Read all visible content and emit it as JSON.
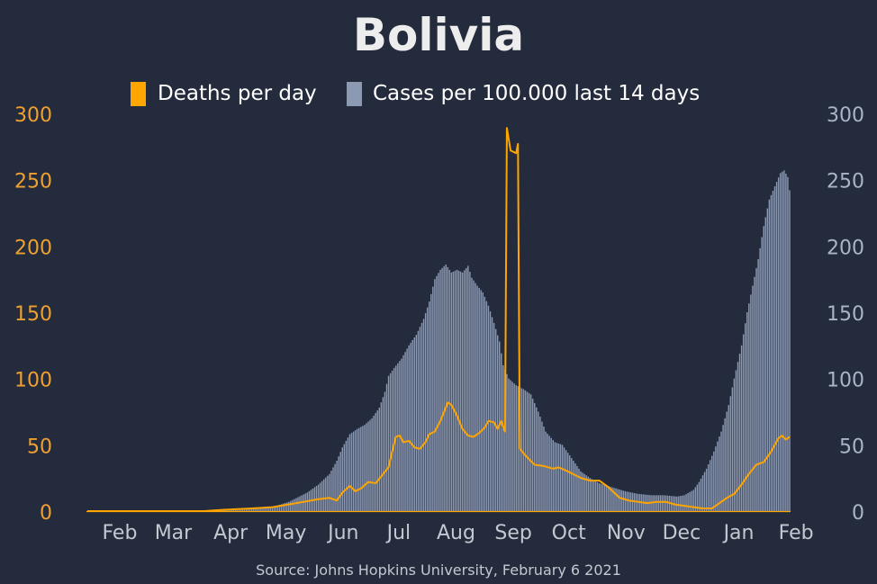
{
  "colors": {
    "background": "#232b3c",
    "deaths": "#ffa500",
    "cases": "#8c99b3",
    "left_axis": "#f0a030",
    "right_axis": "#a9b4c9",
    "month_labels": "#c4c8d0",
    "title": "#ededed",
    "legend_text": "#ffffff",
    "source": "#c4c8d0"
  },
  "chart_data": {
    "type": "bar",
    "title": "Bolivia",
    "source": "Source: Johns Hopkins University, February 6 2021",
    "legend": [
      {
        "label": "Deaths per day",
        "type": "line"
      },
      {
        "label": "Cases per 100.000 last 14 days",
        "type": "bar"
      }
    ],
    "x_ticks": [
      "Feb",
      "Mar",
      "Apr",
      "May",
      "Jun",
      "Jul",
      "Aug",
      "Sep",
      "Oct",
      "Nov",
      "Dec",
      "Jan",
      "Feb"
    ],
    "x_tick_dates": [
      "2020-02-01",
      "2020-03-01",
      "2020-04-01",
      "2020-05-01",
      "2020-06-01",
      "2020-07-01",
      "2020-08-01",
      "2020-09-01",
      "2020-10-01",
      "2020-11-01",
      "2020-12-01",
      "2021-01-01",
      "2021-02-01"
    ],
    "x_range": [
      "2020-01-22",
      "2021-02-05"
    ],
    "left_axis": {
      "label": "Deaths per day",
      "ticks": [
        0,
        50,
        100,
        150,
        200,
        250,
        300
      ],
      "ylim": [
        0,
        300
      ]
    },
    "right_axis": {
      "label": "Cases per 100.000 last 14 days",
      "ticks": [
        0,
        50,
        100,
        150,
        200,
        250,
        300
      ],
      "ylim": [
        0,
        300
      ]
    },
    "cases_per_100k_14d": [
      [
        "2020-01-22",
        0
      ],
      [
        "2020-03-20",
        0
      ],
      [
        "2020-04-01",
        0.3
      ],
      [
        "2020-04-15",
        1
      ],
      [
        "2020-05-01",
        3
      ],
      [
        "2020-05-10",
        7
      ],
      [
        "2020-05-20",
        14
      ],
      [
        "2020-05-26",
        20
      ],
      [
        "2020-06-01",
        28
      ],
      [
        "2020-06-05",
        38
      ],
      [
        "2020-06-08",
        48
      ],
      [
        "2020-06-12",
        58
      ],
      [
        "2020-06-16",
        62
      ],
      [
        "2020-06-20",
        65
      ],
      [
        "2020-06-24",
        70
      ],
      [
        "2020-06-28",
        78
      ],
      [
        "2020-07-01",
        90
      ],
      [
        "2020-07-03",
        102
      ],
      [
        "2020-07-06",
        108
      ],
      [
        "2020-07-10",
        115
      ],
      [
        "2020-07-14",
        125
      ],
      [
        "2020-07-18",
        133
      ],
      [
        "2020-07-22",
        145
      ],
      [
        "2020-07-25",
        158
      ],
      [
        "2020-07-28",
        175
      ],
      [
        "2020-07-31",
        182
      ],
      [
        "2020-08-03",
        186
      ],
      [
        "2020-08-06",
        180
      ],
      [
        "2020-08-09",
        182
      ],
      [
        "2020-08-12",
        180
      ],
      [
        "2020-08-15",
        185
      ],
      [
        "2020-08-17",
        176
      ],
      [
        "2020-08-20",
        170
      ],
      [
        "2020-08-23",
        165
      ],
      [
        "2020-08-26",
        155
      ],
      [
        "2020-08-29",
        142
      ],
      [
        "2020-09-01",
        128
      ],
      [
        "2020-09-03",
        110
      ],
      [
        "2020-09-06",
        100
      ],
      [
        "2020-09-10",
        95
      ],
      [
        "2020-09-14",
        92
      ],
      [
        "2020-09-18",
        88
      ],
      [
        "2020-09-22",
        75
      ],
      [
        "2020-09-26",
        60
      ],
      [
        "2020-10-01",
        52
      ],
      [
        "2020-10-05",
        50
      ],
      [
        "2020-10-10",
        40
      ],
      [
        "2020-10-15",
        30
      ],
      [
        "2020-10-20",
        25
      ],
      [
        "2020-10-25",
        21
      ],
      [
        "2020-11-01",
        18
      ],
      [
        "2020-11-08",
        15
      ],
      [
        "2020-11-15",
        13
      ],
      [
        "2020-11-22",
        12
      ],
      [
        "2020-11-29",
        12
      ],
      [
        "2020-12-06",
        11
      ],
      [
        "2020-12-10",
        12
      ],
      [
        "2020-12-15",
        16
      ],
      [
        "2020-12-18",
        22
      ],
      [
        "2020-12-22",
        32
      ],
      [
        "2020-12-26",
        45
      ],
      [
        "2020-12-30",
        60
      ],
      [
        "2021-01-03",
        80
      ],
      [
        "2021-01-06",
        100
      ],
      [
        "2021-01-10",
        125
      ],
      [
        "2021-01-13",
        150
      ],
      [
        "2021-01-16",
        170
      ],
      [
        "2021-01-19",
        190
      ],
      [
        "2021-01-22",
        215
      ],
      [
        "2021-01-25",
        235
      ],
      [
        "2021-01-28",
        245
      ],
      [
        "2021-01-31",
        255
      ],
      [
        "2021-02-02",
        257
      ],
      [
        "2021-02-04",
        252
      ],
      [
        "2021-02-05",
        242
      ]
    ],
    "deaths_per_day": [
      [
        "2020-01-22",
        0
      ],
      [
        "2020-03-25",
        0
      ],
      [
        "2020-04-05",
        1
      ],
      [
        "2020-04-20",
        2
      ],
      [
        "2020-05-01",
        3
      ],
      [
        "2020-05-10",
        5
      ],
      [
        "2020-05-18",
        7
      ],
      [
        "2020-05-26",
        9
      ],
      [
        "2020-06-01",
        10
      ],
      [
        "2020-06-05",
        8
      ],
      [
        "2020-06-08",
        14
      ],
      [
        "2020-06-12",
        19
      ],
      [
        "2020-06-15",
        15
      ],
      [
        "2020-06-18",
        17
      ],
      [
        "2020-06-22",
        22
      ],
      [
        "2020-06-26",
        21
      ],
      [
        "2020-06-30",
        28
      ],
      [
        "2020-07-03",
        33
      ],
      [
        "2020-07-05",
        45
      ],
      [
        "2020-07-07",
        56
      ],
      [
        "2020-07-09",
        57
      ],
      [
        "2020-07-11",
        52
      ],
      [
        "2020-07-14",
        53
      ],
      [
        "2020-07-17",
        48
      ],
      [
        "2020-07-20",
        47
      ],
      [
        "2020-07-23",
        52
      ],
      [
        "2020-07-25",
        58
      ],
      [
        "2020-07-28",
        60
      ],
      [
        "2020-07-31",
        68
      ],
      [
        "2020-08-02",
        75
      ],
      [
        "2020-08-04",
        82
      ],
      [
        "2020-08-06",
        80
      ],
      [
        "2020-08-09",
        72
      ],
      [
        "2020-08-12",
        62
      ],
      [
        "2020-08-15",
        57
      ],
      [
        "2020-08-18",
        56
      ],
      [
        "2020-08-21",
        59
      ],
      [
        "2020-08-24",
        63
      ],
      [
        "2020-08-26",
        68
      ],
      [
        "2020-08-29",
        67
      ],
      [
        "2020-08-31",
        62
      ],
      [
        "2020-09-02",
        68
      ],
      [
        "2020-09-04",
        60
      ],
      [
        "2020-09-05",
        289
      ],
      [
        "2020-09-07",
        272
      ],
      [
        "2020-09-10",
        270
      ],
      [
        "2020-09-11",
        277
      ],
      [
        "2020-09-12",
        47
      ],
      [
        "2020-09-15",
        42
      ],
      [
        "2020-09-20",
        35
      ],
      [
        "2020-09-25",
        34
      ],
      [
        "2020-09-30",
        32
      ],
      [
        "2020-10-03",
        33
      ],
      [
        "2020-10-08",
        30
      ],
      [
        "2020-10-15",
        25
      ],
      [
        "2020-10-20",
        23
      ],
      [
        "2020-10-25",
        23
      ],
      [
        "2020-10-30",
        18
      ],
      [
        "2020-11-05",
        10
      ],
      [
        "2020-11-10",
        8
      ],
      [
        "2020-11-15",
        7
      ],
      [
        "2020-11-20",
        6
      ],
      [
        "2020-11-25",
        7
      ],
      [
        "2020-11-30",
        7
      ],
      [
        "2020-12-05",
        5
      ],
      [
        "2020-12-10",
        4
      ],
      [
        "2020-12-15",
        3
      ],
      [
        "2020-12-20",
        2
      ],
      [
        "2020-12-25",
        2
      ],
      [
        "2020-12-29",
        6
      ],
      [
        "2021-01-02",
        10
      ],
      [
        "2021-01-06",
        13
      ],
      [
        "2021-01-10",
        20
      ],
      [
        "2021-01-14",
        28
      ],
      [
        "2021-01-18",
        35
      ],
      [
        "2021-01-22",
        37
      ],
      [
        "2021-01-26",
        45
      ],
      [
        "2021-01-30",
        55
      ],
      [
        "2021-02-01",
        57
      ],
      [
        "2021-02-03",
        54
      ],
      [
        "2021-02-05",
        56
      ]
    ]
  }
}
